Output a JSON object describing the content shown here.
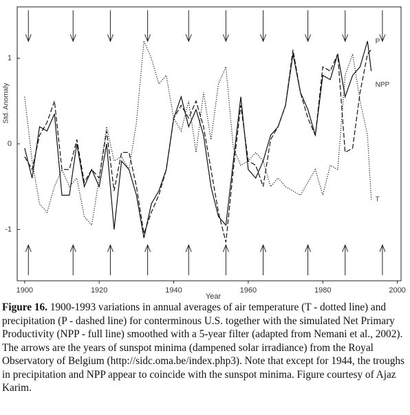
{
  "chart_data": {
    "type": "line",
    "x_label": "Year",
    "y_label": "Std. Anomaly",
    "xlim": [
      1898,
      2001
    ],
    "ylim": [
      -1.6,
      1.6
    ],
    "xticks": [
      1900,
      1920,
      1940,
      1960,
      1980,
      2000
    ],
    "yticks": [
      -1,
      0,
      1
    ],
    "x": [
      1900,
      1902,
      1904,
      1906,
      1908,
      1910,
      1912,
      1914,
      1916,
      1918,
      1920,
      1922,
      1924,
      1926,
      1928,
      1930,
      1932,
      1934,
      1936,
      1938,
      1940,
      1942,
      1944,
      1946,
      1948,
      1950,
      1952,
      1954,
      1956,
      1958,
      1960,
      1962,
      1964,
      1966,
      1968,
      1970,
      1972,
      1974,
      1976,
      1978,
      1980,
      1982,
      1984,
      1986,
      1988,
      1990,
      1992,
      1993
    ],
    "series": [
      {
        "name": "P",
        "color": "#111",
        "dash": "dashed",
        "values": [
          -0.15,
          -0.3,
          0.1,
          0.25,
          0.5,
          -0.3,
          -0.3,
          0.05,
          -0.45,
          -0.3,
          -0.4,
          0.15,
          -0.55,
          -0.1,
          -0.1,
          -0.5,
          -1.05,
          -0.8,
          -0.6,
          -0.3,
          0.3,
          0.45,
          0.3,
          0.5,
          0.2,
          -0.3,
          -0.8,
          -1.15,
          -0.3,
          0.45,
          -0.2,
          -0.25,
          -0.5,
          0.05,
          0.2,
          0.45,
          1.1,
          0.6,
          0.3,
          0.1,
          0.9,
          0.85,
          1.05,
          -0.1,
          -0.05,
          0.6,
          1.05,
          1.1
        ]
      },
      {
        "name": "NPP",
        "color": "#111",
        "dash": "solid",
        "values": [
          -0.05,
          -0.4,
          0.2,
          0.15,
          0.35,
          -0.6,
          -0.6,
          0.0,
          -0.5,
          -0.3,
          -0.5,
          0.0,
          -1.0,
          -0.2,
          -0.3,
          -0.6,
          -1.1,
          -0.7,
          -0.55,
          -0.3,
          0.3,
          0.55,
          0.2,
          0.4,
          0.1,
          -0.5,
          -0.85,
          -0.95,
          -0.2,
          0.55,
          -0.3,
          -0.4,
          -0.2,
          0.1,
          0.2,
          0.45,
          1.05,
          0.6,
          0.4,
          0.1,
          0.8,
          0.75,
          1.05,
          0.55,
          0.8,
          0.9,
          1.2,
          0.85
        ]
      },
      {
        "name": "T",
        "color": "#111",
        "dash": "dotted",
        "values": [
          0.55,
          -0.2,
          -0.7,
          -0.8,
          -0.5,
          -0.3,
          -0.5,
          -0.4,
          -0.85,
          -0.95,
          -0.4,
          0.2,
          -0.2,
          -0.15,
          -0.3,
          0.25,
          1.2,
          1.0,
          0.7,
          0.8,
          0.3,
          0.15,
          0.5,
          -0.1,
          0.6,
          0.05,
          0.7,
          0.9,
          -0.05,
          -0.25,
          -0.2,
          -0.1,
          -0.2,
          -0.5,
          -0.4,
          -0.5,
          -0.55,
          -0.6,
          -0.45,
          -0.3,
          -0.6,
          -0.25,
          -0.3,
          0.8,
          1.05,
          0.5,
          0.1,
          -0.65
        ]
      }
    ],
    "sunspot_minima": [
      1901,
      1913,
      1923,
      1933,
      1944,
      1954,
      1964,
      1976,
      1986,
      1996
    ]
  },
  "caption": {
    "label": "Figure 16.",
    "text": "1900-1993 variations in annual averages of air temperature (T - dotted line) and precipitation (P - dashed line) for conterminous U.S. together with the simulated Net Primary Productivity (NPP - full line) smoothed with a 5-year filter (adapted from Nemani et al., 2002). The arrows are the years of sunspot minima (dampened solar irradiance) from the Royal Observatory of Belgium (http://sidc.oma.be/index.php3). Note that except for 1944, the troughs in precipitation and NPP appear to coincide with the sunspot minima. Figure courtesy of Ajaz Karim."
  }
}
